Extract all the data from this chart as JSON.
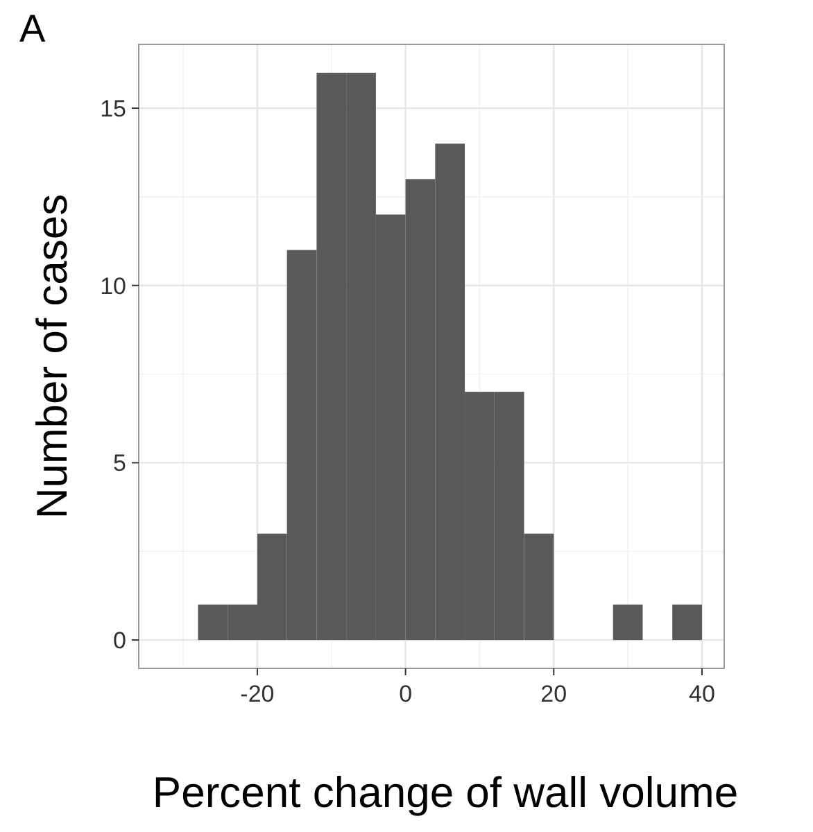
{
  "chart_data": {
    "type": "histogram",
    "xlabel": "Percent change of wall volume",
    "ylabel": "Number of cases",
    "annotations": [
      "A"
    ],
    "bins": [
      -28,
      -24,
      -20,
      -16,
      -12,
      -8,
      -4,
      0,
      4,
      8,
      12,
      16,
      20,
      24,
      28,
      32,
      36,
      40
    ],
    "values": [
      1,
      1,
      3,
      11,
      16,
      16,
      12,
      13,
      14,
      7,
      7,
      3,
      0,
      0,
      1,
      0,
      1
    ],
    "color": "#595959",
    "xlim": [
      -36,
      43
    ],
    "xticks": [
      -20,
      0,
      20,
      40
    ],
    "ylim": [
      -0.8,
      16.8
    ],
    "yticks": [
      0,
      5,
      10,
      15
    ],
    "grid": true
  }
}
